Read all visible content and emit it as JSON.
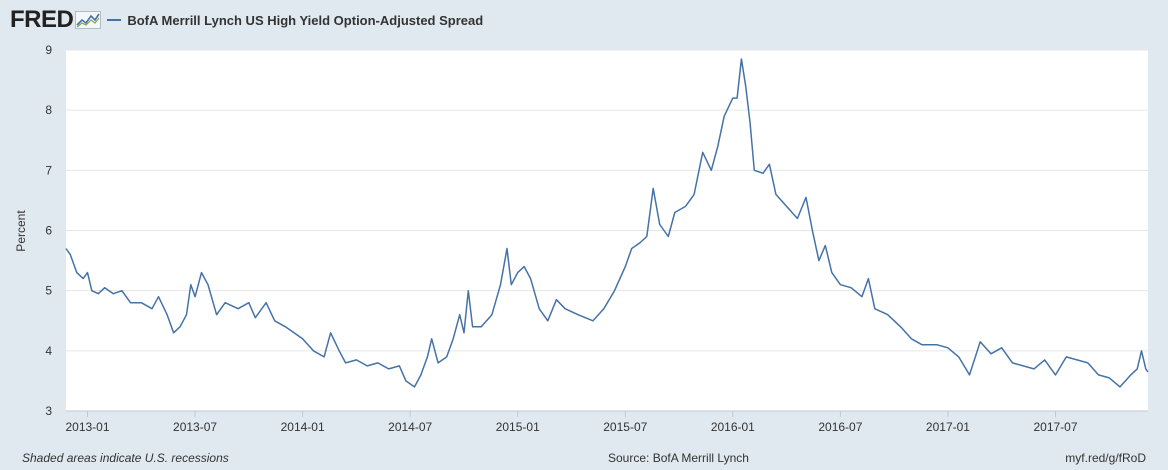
{
  "header": {
    "logo_text": "FRED",
    "legend_label": "BofA Merrill Lynch US High Yield Option-Adjusted Spread"
  },
  "footer": {
    "recession_note": "Shaded areas indicate U.S. recessions",
    "source": "Source: BofA Merrill Lynch",
    "link": "myf.red/g/fRoD"
  },
  "colors": {
    "series": "#4572a7",
    "plot_bg": "#ffffff",
    "page_bg": "#e1e9f0",
    "grid": "#e6e6e6"
  },
  "chart_data": {
    "type": "line",
    "title": "BofA Merrill Lynch US High Yield Option-Adjusted Spread",
    "xlabel": "",
    "ylabel": "Percent",
    "ylim": [
      3,
      9
    ],
    "yticks": [
      3,
      4,
      5,
      6,
      7,
      8,
      9
    ],
    "xlim": [
      2012.9,
      2017.93
    ],
    "xticks": [
      {
        "x": 2013.0,
        "label": "2013-01"
      },
      {
        "x": 2013.5,
        "label": "2013-07"
      },
      {
        "x": 2014.0,
        "label": "2014-01"
      },
      {
        "x": 2014.5,
        "label": "2014-07"
      },
      {
        "x": 2015.0,
        "label": "2015-01"
      },
      {
        "x": 2015.5,
        "label": "2015-07"
      },
      {
        "x": 2016.0,
        "label": "2016-01"
      },
      {
        "x": 2016.5,
        "label": "2016-07"
      },
      {
        "x": 2017.0,
        "label": "2017-01"
      },
      {
        "x": 2017.5,
        "label": "2017-07"
      }
    ],
    "grid": true,
    "series": [
      {
        "name": "BofA Merrill Lynch US High Yield Option-Adjusted Spread",
        "points": [
          [
            2012.9,
            5.7
          ],
          [
            2012.92,
            5.6
          ],
          [
            2012.95,
            5.3
          ],
          [
            2012.98,
            5.2
          ],
          [
            2013.0,
            5.3
          ],
          [
            2013.02,
            5.0
          ],
          [
            2013.05,
            4.95
          ],
          [
            2013.08,
            5.05
          ],
          [
            2013.12,
            4.95
          ],
          [
            2013.16,
            5.0
          ],
          [
            2013.2,
            4.8
          ],
          [
            2013.25,
            4.8
          ],
          [
            2013.3,
            4.7
          ],
          [
            2013.33,
            4.9
          ],
          [
            2013.37,
            4.6
          ],
          [
            2013.4,
            4.3
          ],
          [
            2013.43,
            4.4
          ],
          [
            2013.46,
            4.6
          ],
          [
            2013.48,
            5.1
          ],
          [
            2013.5,
            4.9
          ],
          [
            2013.53,
            5.3
          ],
          [
            2013.56,
            5.1
          ],
          [
            2013.6,
            4.6
          ],
          [
            2013.64,
            4.8
          ],
          [
            2013.7,
            4.7
          ],
          [
            2013.75,
            4.8
          ],
          [
            2013.78,
            4.55
          ],
          [
            2013.83,
            4.8
          ],
          [
            2013.87,
            4.5
          ],
          [
            2013.92,
            4.4
          ],
          [
            2013.96,
            4.3
          ],
          [
            2014.0,
            4.2
          ],
          [
            2014.05,
            4.0
          ],
          [
            2014.1,
            3.9
          ],
          [
            2014.13,
            4.3
          ],
          [
            2014.17,
            4.0
          ],
          [
            2014.2,
            3.8
          ],
          [
            2014.25,
            3.85
          ],
          [
            2014.3,
            3.75
          ],
          [
            2014.35,
            3.8
          ],
          [
            2014.4,
            3.7
          ],
          [
            2014.45,
            3.75
          ],
          [
            2014.48,
            3.5
          ],
          [
            2014.52,
            3.4
          ],
          [
            2014.55,
            3.6
          ],
          [
            2014.58,
            3.9
          ],
          [
            2014.6,
            4.2
          ],
          [
            2014.63,
            3.8
          ],
          [
            2014.67,
            3.9
          ],
          [
            2014.7,
            4.2
          ],
          [
            2014.73,
            4.6
          ],
          [
            2014.75,
            4.3
          ],
          [
            2014.77,
            5.0
          ],
          [
            2014.79,
            4.4
          ],
          [
            2014.83,
            4.4
          ],
          [
            2014.88,
            4.6
          ],
          [
            2014.92,
            5.1
          ],
          [
            2014.95,
            5.7
          ],
          [
            2014.97,
            5.1
          ],
          [
            2015.0,
            5.3
          ],
          [
            2015.03,
            5.4
          ],
          [
            2015.06,
            5.2
          ],
          [
            2015.1,
            4.7
          ],
          [
            2015.14,
            4.5
          ],
          [
            2015.18,
            4.85
          ],
          [
            2015.22,
            4.7
          ],
          [
            2015.28,
            4.6
          ],
          [
            2015.35,
            4.5
          ],
          [
            2015.4,
            4.7
          ],
          [
            2015.45,
            5.0
          ],
          [
            2015.5,
            5.4
          ],
          [
            2015.53,
            5.7
          ],
          [
            2015.57,
            5.8
          ],
          [
            2015.6,
            5.9
          ],
          [
            2015.63,
            6.7
          ],
          [
            2015.66,
            6.1
          ],
          [
            2015.7,
            5.9
          ],
          [
            2015.73,
            6.3
          ],
          [
            2015.78,
            6.4
          ],
          [
            2015.82,
            6.6
          ],
          [
            2015.86,
            7.3
          ],
          [
            2015.9,
            7.0
          ],
          [
            2015.93,
            7.4
          ],
          [
            2015.96,
            7.9
          ],
          [
            2016.0,
            8.2
          ],
          [
            2016.02,
            8.2
          ],
          [
            2016.04,
            8.85
          ],
          [
            2016.06,
            8.4
          ],
          [
            2016.08,
            7.8
          ],
          [
            2016.1,
            7.0
          ],
          [
            2016.14,
            6.95
          ],
          [
            2016.17,
            7.1
          ],
          [
            2016.2,
            6.6
          ],
          [
            2016.25,
            6.4
          ],
          [
            2016.3,
            6.2
          ],
          [
            2016.34,
            6.55
          ],
          [
            2016.37,
            6.0
          ],
          [
            2016.4,
            5.5
          ],
          [
            2016.43,
            5.75
          ],
          [
            2016.46,
            5.3
          ],
          [
            2016.5,
            5.1
          ],
          [
            2016.55,
            5.05
          ],
          [
            2016.6,
            4.9
          ],
          [
            2016.63,
            5.2
          ],
          [
            2016.66,
            4.7
          ],
          [
            2016.72,
            4.6
          ],
          [
            2016.78,
            4.4
          ],
          [
            2016.83,
            4.2
          ],
          [
            2016.88,
            4.1
          ],
          [
            2016.95,
            4.1
          ],
          [
            2017.0,
            4.05
          ],
          [
            2017.05,
            3.9
          ],
          [
            2017.1,
            3.6
          ],
          [
            2017.15,
            4.15
          ],
          [
            2017.2,
            3.95
          ],
          [
            2017.25,
            4.05
          ],
          [
            2017.3,
            3.8
          ],
          [
            2017.35,
            3.75
          ],
          [
            2017.4,
            3.7
          ],
          [
            2017.45,
            3.85
          ],
          [
            2017.5,
            3.6
          ],
          [
            2017.55,
            3.9
          ],
          [
            2017.6,
            3.85
          ],
          [
            2017.65,
            3.8
          ],
          [
            2017.7,
            3.6
          ],
          [
            2017.75,
            3.55
          ],
          [
            2017.8,
            3.4
          ],
          [
            2017.85,
            3.6
          ],
          [
            2017.88,
            3.7
          ],
          [
            2017.9,
            4.0
          ],
          [
            2017.92,
            3.7
          ],
          [
            2017.93,
            3.65
          ]
        ]
      }
    ]
  }
}
